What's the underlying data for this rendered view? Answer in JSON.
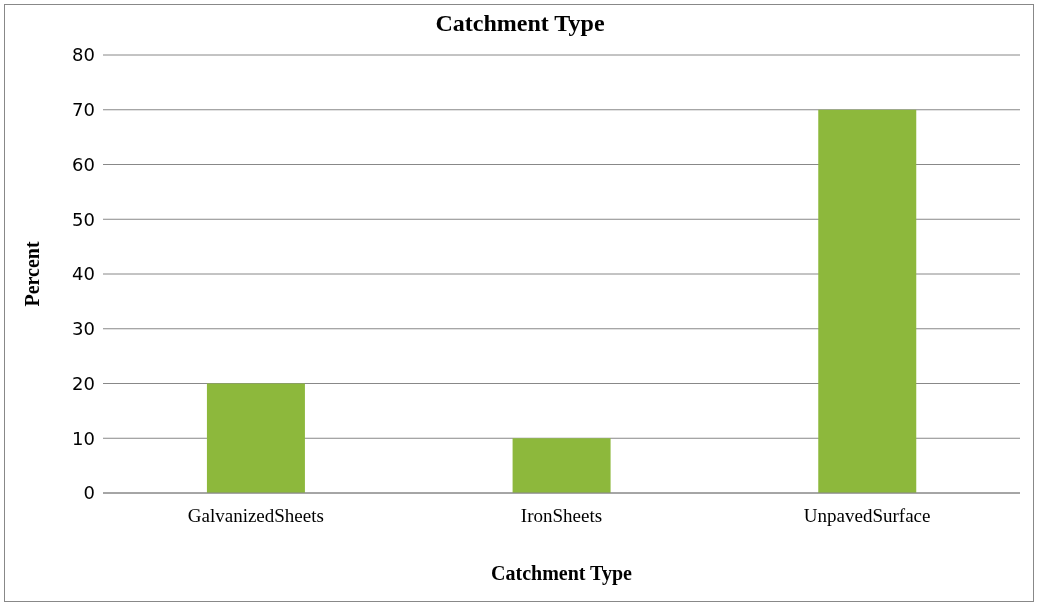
{
  "chart_data": {
    "type": "bar",
    "title": "Catchment Type",
    "xlabel": "Catchment Type",
    "ylabel": "Percent",
    "categories": [
      "GalvanizedSheets",
      "IronSheets",
      "UnpavedSurface"
    ],
    "values": [
      20,
      10,
      70
    ],
    "color": "#8db83c",
    "ylim": [
      0,
      80
    ],
    "yticks": [
      0,
      10,
      20,
      30,
      40,
      50,
      60,
      70,
      80
    ],
    "grid": "y"
  }
}
